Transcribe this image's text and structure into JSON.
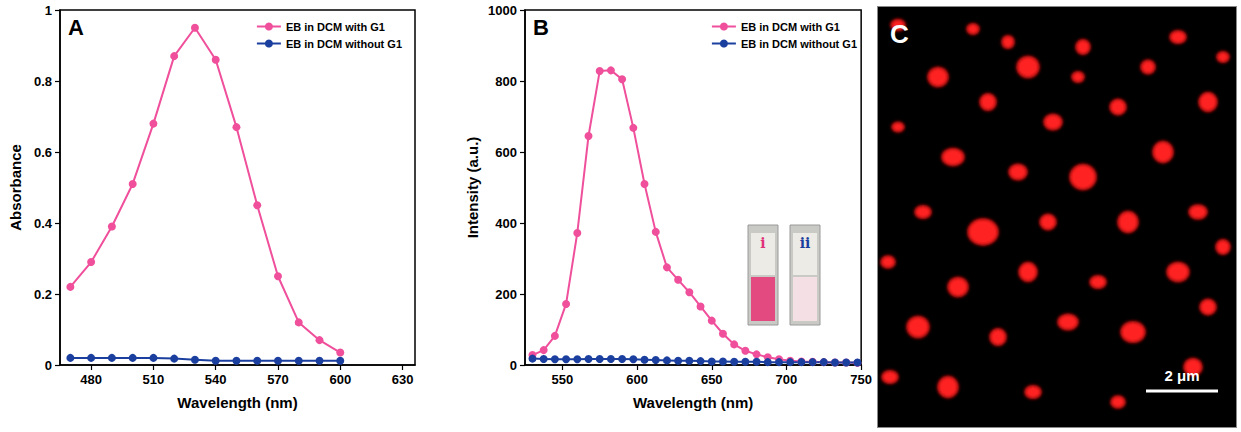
{
  "chart_data": [
    {
      "type": "line",
      "panel_label": "A",
      "x_label": "Wavelength (nm)",
      "y_label": "Absorbance",
      "x": [
        470,
        480,
        490,
        500,
        510,
        520,
        530,
        540,
        550,
        560,
        570,
        580,
        590,
        600
      ],
      "series": [
        {
          "name": "EB in DCM with G1",
          "color": "#ef4f9b",
          "marker": "circle",
          "values": [
            0.22,
            0.29,
            0.39,
            0.51,
            0.68,
            0.87,
            0.95,
            0.86,
            0.67,
            0.45,
            0.25,
            0.12,
            0.07,
            0.035
          ]
        },
        {
          "name": "EB in DCM without G1",
          "color": "#1b3f9e",
          "marker": "circle",
          "values": [
            0.02,
            0.02,
            0.02,
            0.02,
            0.02,
            0.018,
            0.015,
            0.012,
            0.012,
            0.012,
            0.012,
            0.012,
            0.012,
            0.012
          ]
        }
      ],
      "xlim": [
        465,
        636
      ],
      "xticks": [
        480,
        510,
        540,
        570,
        600,
        630
      ],
      "ylim": [
        0,
        1
      ],
      "yticks": [
        0,
        0.2,
        0.4,
        0.6,
        0.8,
        1
      ],
      "grid": false,
      "legend": "upper right"
    },
    {
      "type": "line",
      "panel_label": "B",
      "x_label": "Wavelength (nm)",
      "y_label": "Intensity (a.u.)",
      "x": [
        530,
        537.5,
        545,
        552.5,
        560,
        567.5,
        575,
        582.5,
        590,
        597.5,
        605,
        612.5,
        620,
        627.5,
        635,
        642.5,
        650,
        657.5,
        665,
        672.5,
        680,
        687.5,
        695,
        702.5,
        710,
        717.5,
        725,
        732.5,
        740,
        747.5
      ],
      "series": [
        {
          "name": "EB in DCM with G1",
          "color": "#ef4f9b",
          "marker": "circle",
          "values": [
            28,
            42,
            82,
            172,
            372,
            645,
            828,
            830,
            805,
            668,
            510,
            375,
            275,
            240,
            205,
            165,
            125,
            88,
            58,
            40,
            30,
            22,
            16,
            12,
            10,
            9,
            8,
            7,
            7,
            6
          ]
        },
        {
          "name": "EB in DCM without G1",
          "color": "#1b3f9e",
          "marker": "circle",
          "values": [
            18,
            17,
            16,
            16,
            16,
            17,
            17,
            17,
            17,
            16,
            15,
            14,
            13,
            12,
            12,
            11,
            10,
            10,
            9,
            9,
            9,
            8,
            8,
            8,
            8,
            8,
            8,
            7,
            7,
            7
          ]
        }
      ],
      "xlim": [
        525,
        750
      ],
      "xticks": [
        550,
        600,
        650,
        700,
        750
      ],
      "ylim": [
        0,
        1000
      ],
      "yticks": [
        0,
        200,
        400,
        600,
        800,
        1000
      ],
      "grid": false,
      "legend": "upper right",
      "inset_labels": [
        "i",
        "ii"
      ]
    }
  ],
  "image": {
    "panel_label": "C",
    "scale_bar_label": "2 μm"
  }
}
